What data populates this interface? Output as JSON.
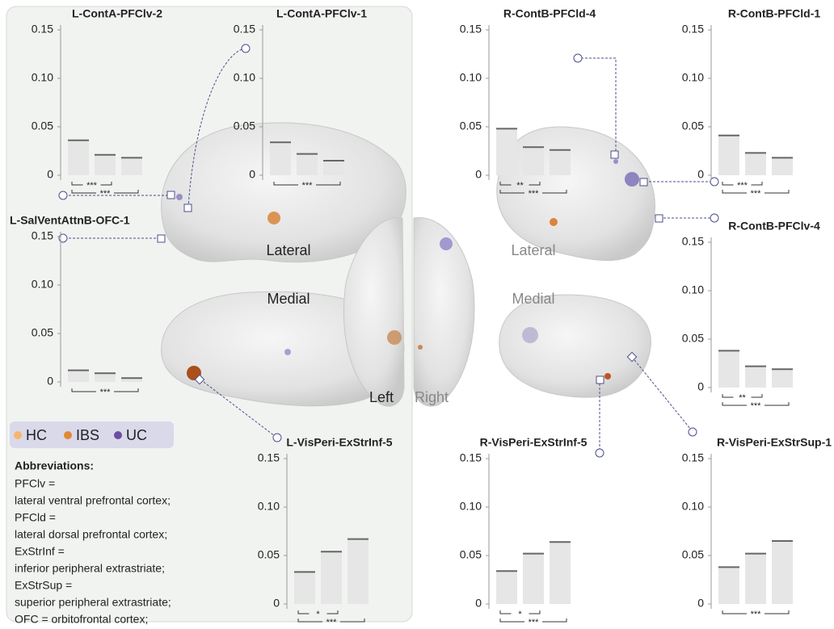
{
  "chart_data": [
    {
      "type": "bar",
      "title": "L-ContA-PFClv-2",
      "values": [
        0.036,
        0.021,
        0.018
      ],
      "ylim": [
        -0.005,
        0.155
      ],
      "yticks": [
        0,
        0.05,
        {
          "value": 0.1,
          "label": "0.10"
        },
        0.15
      ],
      "comparisons": [
        {
          "label": "***",
          "between": [
            "HC",
            "IBS"
          ]
        },
        {
          "label": "***",
          "between": [
            "HC",
            "UC"
          ]
        }
      ]
    },
    {
      "type": "bar",
      "title": "L-ContA-PFClv-1",
      "values": [
        0.034,
        0.022,
        0.015
      ],
      "ylim": [
        -0.005,
        0.155
      ],
      "yticks": [
        0,
        0.05,
        {
          "value": 0.1,
          "label": "0.10"
        },
        0.15
      ],
      "comparisons": [
        {
          "label": "***",
          "between": [
            "HC",
            "UC"
          ]
        }
      ]
    },
    {
      "type": "bar",
      "title": "R-ContB-PFCld-4",
      "values": [
        0.048,
        0.029,
        0.026
      ],
      "ylim": [
        -0.005,
        0.155
      ],
      "yticks": [
        0,
        0.05,
        {
          "value": 0.1,
          "label": "0.10"
        },
        0.15
      ],
      "comparisons": [
        {
          "label": "**",
          "between": [
            "HC",
            "IBS"
          ]
        },
        {
          "label": "***",
          "between": [
            "HC",
            "UC"
          ]
        }
      ]
    },
    {
      "type": "bar",
      "title": "R-ContB-PFCld-1",
      "values": [
        0.041,
        0.023,
        0.018
      ],
      "ylim": [
        -0.005,
        0.155
      ],
      "yticks": [
        0,
        0.05,
        {
          "value": 0.1,
          "label": "0.10"
        },
        0.15
      ],
      "comparisons": [
        {
          "label": "***",
          "between": [
            "HC",
            "IBS"
          ]
        },
        {
          "label": "***",
          "between": [
            "HC",
            "UC"
          ]
        }
      ]
    },
    {
      "type": "bar",
      "title": "L-SalVentAttnB-OFC-1",
      "values": [
        0.012,
        0.009,
        0.004
      ],
      "ylim": [
        -0.005,
        0.155
      ],
      "yticks": [
        0,
        0.05,
        {
          "value": 0.1,
          "label": "0.10"
        },
        0.15
      ],
      "comparisons": [
        {
          "label": "***",
          "between": [
            "HC",
            "UC"
          ]
        }
      ]
    },
    {
      "type": "bar",
      "title": "R-ContB-PFClv-4",
      "values": [
        0.038,
        0.022,
        0.019
      ],
      "ylim": [
        -0.005,
        0.155
      ],
      "yticks": [
        0,
        0.05,
        {
          "value": 0.1,
          "label": "0.10"
        },
        0.15
      ],
      "comparisons": [
        {
          "label": "**",
          "between": [
            "HC",
            "IBS"
          ]
        },
        {
          "label": "***",
          "between": [
            "HC",
            "UC"
          ]
        }
      ]
    },
    {
      "type": "bar",
      "title": "L-VisPeri-ExStrInf-5",
      "values": [
        0.033,
        0.054,
        0.067
      ],
      "ylim": [
        -0.005,
        0.155
      ],
      "yticks": [
        0,
        0.05,
        {
          "value": 0.1,
          "label": "0.10"
        },
        0.15
      ],
      "comparisons": [
        {
          "label": "*",
          "between": [
            "HC",
            "IBS"
          ]
        },
        {
          "label": "***",
          "between": [
            "HC",
            "UC"
          ]
        }
      ]
    },
    {
      "type": "bar",
      "title": "R-VisPeri-ExStrInf-5",
      "values": [
        0.034,
        0.052,
        0.064
      ],
      "ylim": [
        -0.005,
        0.155
      ],
      "yticks": [
        0,
        0.05,
        {
          "value": 0.1,
          "label": "0.10"
        },
        0.15
      ],
      "comparisons": [
        {
          "label": "*",
          "between": [
            "HC",
            "IBS"
          ]
        },
        {
          "label": "***",
          "between": [
            "HC",
            "UC"
          ]
        }
      ]
    },
    {
      "type": "bar",
      "title": "R-VisPeri-ExStrSup-1",
      "values": [
        0.038,
        0.052,
        0.065
      ],
      "ylim": [
        -0.005,
        0.155
      ],
      "yticks": [
        0,
        0.05,
        {
          "value": 0.1,
          "label": "0.10"
        },
        0.15
      ],
      "comparisons": [
        {
          "label": "***",
          "between": [
            "HC",
            "UC"
          ]
        }
      ]
    }
  ],
  "legend": [
    {
      "name": "HC",
      "color": "#f7b56c"
    },
    {
      "name": "IBS",
      "color": "#e08a33"
    },
    {
      "name": "UC",
      "color": "#6b4ea0"
    }
  ],
  "views": {
    "left_lateral": "Lateral",
    "left_medial": "Medial",
    "left": "Left",
    "right": "Right",
    "right_lateral": "Lateral",
    "right_medial": "Medial"
  },
  "abbreviations": {
    "title": "Abbreviations:",
    "lines": [
      "PFClv =",
      "lateral ventral prefrontal cortex;",
      "PFCld =",
      "lateral dorsal prefrontal cortex;",
      "ExStrInf =",
      "inferior peripheral extrastriate;",
      "ExStrSup =",
      "superior peripheral extrastriate;",
      "OFC = orbitofrontal cortex;"
    ]
  }
}
